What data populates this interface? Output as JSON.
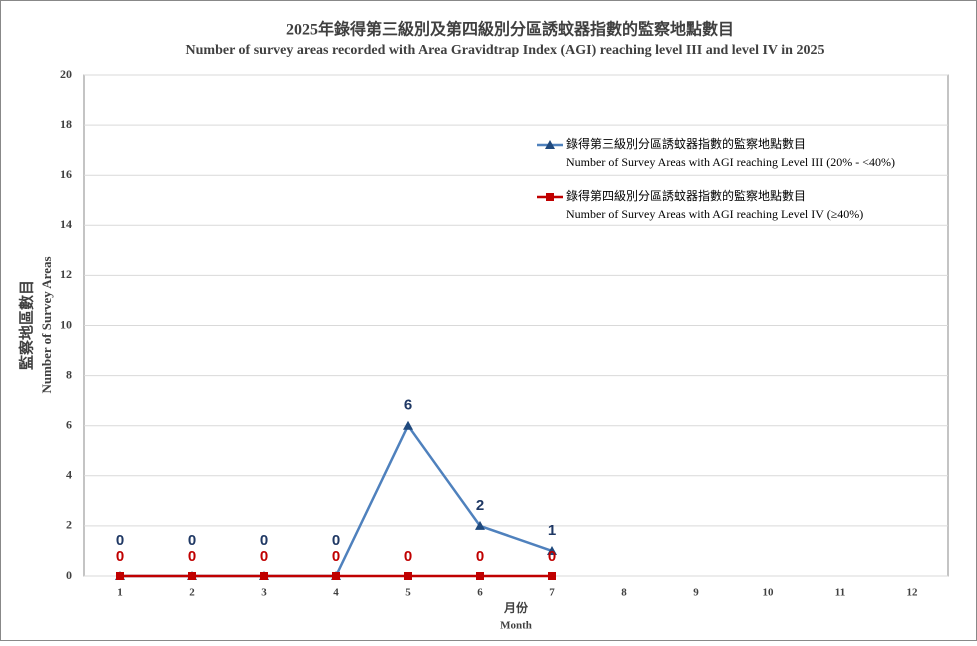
{
  "chart_data": {
    "type": "line",
    "title": "2025年錄得第三級別及第四級別分區誘蚊器指數的監察地點數目",
    "subtitle": "Number of survey areas recorded with Area Gravidtrap Index (AGI) reaching level III and level IV in 2025",
    "y_label": "監察地區數目",
    "y_label_en": "Number of Survey Areas",
    "x_label": "月份",
    "x_label_en": "Month",
    "categories": [
      "1",
      "2",
      "3",
      "4",
      "5",
      "6",
      "7",
      "8",
      "9",
      "10",
      "11",
      "12"
    ],
    "series": [
      {
        "name": "錄得第三級別分區誘蚊器指數的監察地點數目",
        "name_en": "Number of Survey Areas with AGI reaching Level III (20% - <40%)",
        "color": "#4f81bd",
        "label_color": "#1f3864",
        "marker": "triangle",
        "values": [
          0,
          0,
          0,
          0,
          6,
          2,
          1,
          null,
          null,
          null,
          null,
          null
        ]
      },
      {
        "name": "錄得第四級別分區誘蚊器指數的監察地點數目",
        "name_en": "Number of Survey Areas with AGI reaching Level IV (≥40%)",
        "color": "#c00000",
        "label_color": "#c00000",
        "marker": "square",
        "values": [
          0,
          0,
          0,
          0,
          0,
          0,
          0,
          null,
          null,
          null,
          null,
          null
        ]
      }
    ],
    "ylim": [
      0,
      20
    ],
    "yticks": [
      0,
      2,
      4,
      6,
      8,
      10,
      12,
      14,
      16,
      18,
      20
    ],
    "grid": true,
    "legend": "upper right"
  }
}
